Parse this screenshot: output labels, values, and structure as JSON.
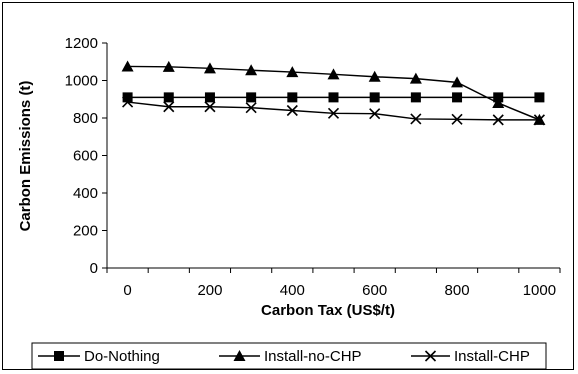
{
  "chart_data": {
    "type": "line",
    "title": "",
    "xlabel": "Carbon Tax (US$/t)",
    "ylabel": "Carbon Emissions (t)",
    "xlim": [
      -50,
      1050
    ],
    "ylim": [
      0,
      1200
    ],
    "x_ticks": [
      "0",
      "200",
      "400",
      "600",
      "800",
      "1000"
    ],
    "y_ticks": [
      "0",
      "200",
      "400",
      "600",
      "800",
      "1000",
      "1200"
    ],
    "x": [
      0,
      100,
      200,
      300,
      400,
      500,
      600,
      700,
      800,
      900,
      1000
    ],
    "grid": false,
    "legend_position": "bottom",
    "series": [
      {
        "name": "Do-Nothing",
        "marker": "square",
        "values": [
          910,
          910,
          910,
          910,
          910,
          910,
          910,
          910,
          910,
          910,
          910
        ]
      },
      {
        "name": "Install-no-CHP",
        "marker": "triangle",
        "values": [
          1075,
          1073,
          1065,
          1055,
          1045,
          1033,
          1020,
          1010,
          990,
          880,
          790
        ]
      },
      {
        "name": "Install-CHP",
        "marker": "x",
        "values": [
          885,
          860,
          860,
          855,
          840,
          825,
          823,
          795,
          793,
          790,
          790
        ]
      }
    ]
  }
}
